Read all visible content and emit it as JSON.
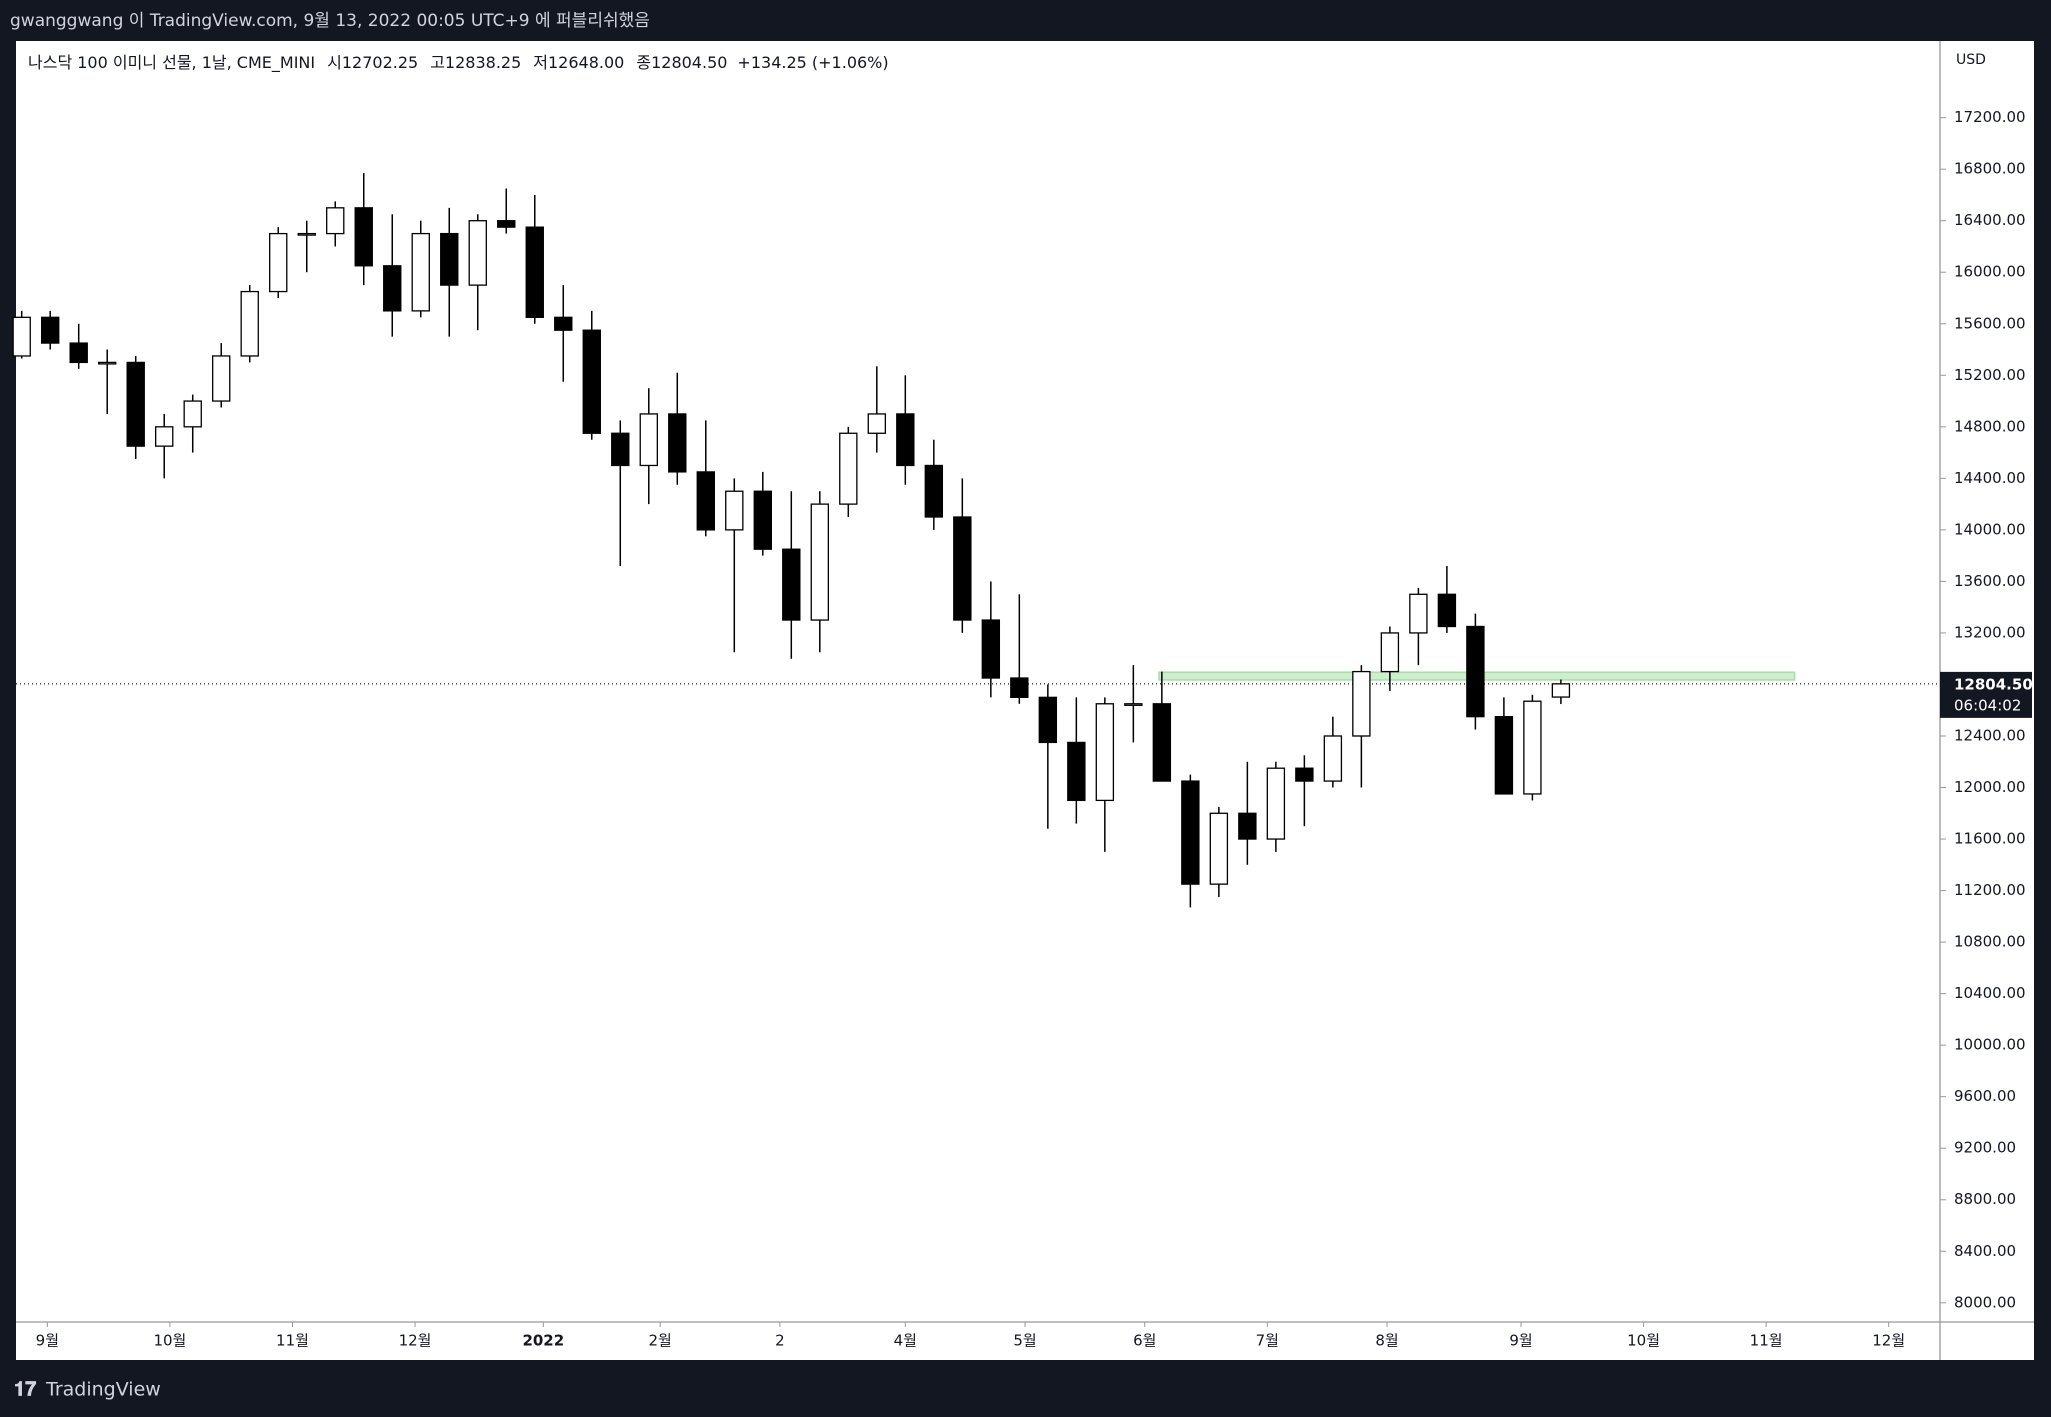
{
  "header": {
    "title": "gwanggwang 이 TradingView.com, 9월 13, 2022 00:05 UTC+9 에 퍼블리쉬했음"
  },
  "chart_data": {
    "type": "candlestick",
    "legend": {
      "symbol": "나스닥 100 이미니 선물, 1날, CME_MINI",
      "open_label": "시",
      "open": "12702.25",
      "high_label": "고",
      "high": "12838.25",
      "low_label": "저",
      "low": "12648.00",
      "close_label": "종",
      "close": "12804.50",
      "change": "+134.25 (+1.06%)"
    },
    "currency": "USD",
    "categories": [
      null,
      null,
      null,
      null,
      null,
      null,
      null,
      null,
      null,
      null,
      null,
      null,
      null,
      null,
      null,
      null,
      null,
      null,
      null,
      null,
      null,
      null,
      null,
      null,
      null,
      null,
      null,
      null,
      null,
      null,
      null,
      null,
      null,
      null,
      null,
      null,
      null,
      null,
      null,
      null,
      null,
      null,
      null,
      null,
      null,
      null,
      null,
      null,
      null,
      null,
      null,
      null,
      null,
      null,
      null
    ],
    "open": [
      15350,
      15650,
      15450,
      15300,
      15300,
      14650,
      14800,
      15000,
      15350,
      15850,
      16300,
      16300,
      16500,
      16050,
      15700,
      16300,
      15900,
      16400,
      16350,
      15650,
      15550,
      14750,
      14500,
      14900,
      14450,
      14000,
      14300,
      13850,
      13300,
      14200,
      14750,
      14900,
      14500,
      14100,
      13300,
      12850,
      12700,
      12350,
      11900,
      12650,
      12650,
      12050,
      11250,
      11800,
      11600,
      12150,
      12050,
      12400,
      12900,
      13200,
      13500,
      13250,
      12550,
      11950,
      12702.25
    ],
    "high": [
      15700,
      15700,
      15600,
      15400,
      15350,
      14900,
      15050,
      15450,
      15900,
      16350,
      16400,
      16550,
      16770,
      16450,
      16400,
      16500,
      16450,
      16650,
      16600,
      15900,
      15700,
      14850,
      15100,
      15220,
      14850,
      14400,
      14450,
      14300,
      14300,
      14800,
      15270,
      15200,
      14700,
      14400,
      13600,
      13500,
      12800,
      12700,
      12700,
      12950,
      12900,
      12100,
      11850,
      12200,
      12200,
      12250,
      12550,
      12950,
      13250,
      13550,
      13720,
      13350,
      12700,
      12720,
      12838.25
    ],
    "low": [
      15330,
      15400,
      15250,
      14900,
      14550,
      14400,
      14600,
      14950,
      15300,
      15800,
      16000,
      16200,
      15900,
      15500,
      15650,
      15500,
      15550,
      16300,
      15600,
      15150,
      14700,
      13720,
      14200,
      14350,
      13950,
      13050,
      13800,
      13000,
      13050,
      14100,
      14600,
      14350,
      14000,
      13200,
      12700,
      12650,
      11680,
      11720,
      11500,
      12350,
      12050,
      11070,
      11150,
      11400,
      11500,
      11700,
      12000,
      12000,
      12750,
      12950,
      13200,
      12450,
      11950,
      11900,
      12648
    ],
    "close": [
      15650,
      15450,
      15300,
      15300,
      14650,
      14800,
      15000,
      15350,
      15850,
      16300,
      16300,
      16500,
      16050,
      15700,
      16300,
      15900,
      16400,
      16350,
      15650,
      15550,
      14750,
      14500,
      14900,
      14450,
      14000,
      14300,
      13850,
      13300,
      14200,
      14750,
      14900,
      14500,
      14100,
      13300,
      12850,
      12700,
      12350,
      11900,
      12650,
      12650,
      12050,
      11250,
      11800,
      11600,
      12150,
      12050,
      12400,
      12900,
      13200,
      13500,
      13250,
      12550,
      11950,
      12670,
      12804.5
    ],
    "up_color": "#ffffff",
    "down_color": "#000000",
    "outline_color": "#000000",
    "xlim": [
      -0.2,
      67.3
    ],
    "xticks": [
      {
        "value": 0.9,
        "label": "9월"
      },
      {
        "value": 5.2,
        "label": "10월"
      },
      {
        "value": 9.5,
        "label": "11월"
      },
      {
        "value": 13.8,
        "label": "12월"
      },
      {
        "value": 18.3,
        "label": "2022"
      },
      {
        "value": 22.4,
        "label": "2월"
      },
      {
        "value": 26.6,
        "label": "2"
      },
      {
        "value": 31.0,
        "label": "4월"
      },
      {
        "value": 35.2,
        "label": "5월"
      },
      {
        "value": 39.4,
        "label": "6월"
      },
      {
        "value": 43.7,
        "label": "7월"
      },
      {
        "value": 47.9,
        "label": "8월"
      },
      {
        "value": 52.6,
        "label": "9월"
      },
      {
        "value": 56.9,
        "label": "10월"
      },
      {
        "value": 61.2,
        "label": "11월"
      },
      {
        "value": 65.5,
        "label": "12월"
      }
    ],
    "ylim": [
      7851,
      17795
    ],
    "yticks": [
      {
        "value": 8000,
        "label": "8000.00"
      },
      {
        "value": 8400,
        "label": "8400.00"
      },
      {
        "value": 8800,
        "label": "8800.00"
      },
      {
        "value": 9200,
        "label": "9200.00"
      },
      {
        "value": 9600,
        "label": "9600.00"
      },
      {
        "value": 10000,
        "label": "10000.00"
      },
      {
        "value": 10400,
        "label": "10400.00"
      },
      {
        "value": 10800,
        "label": "10800.00"
      },
      {
        "value": 11200,
        "label": "11200.00"
      },
      {
        "value": 11600,
        "label": "11600.00"
      },
      {
        "value": 12000,
        "label": "12000.00"
      },
      {
        "value": 12400,
        "label": "12400.00"
      },
      {
        "value": 12800,
        "label": "12800.00"
      },
      {
        "value": 13200,
        "label": "13200.00"
      },
      {
        "value": 13600,
        "label": "13600.00"
      },
      {
        "value": 14000,
        "label": "14000.00"
      },
      {
        "value": 14400,
        "label": "14400.00"
      },
      {
        "value": 14800,
        "label": "14800.00"
      },
      {
        "value": 15200,
        "label": "15200.00"
      },
      {
        "value": 15600,
        "label": "15600.00"
      },
      {
        "value": 16000,
        "label": "16000.00"
      },
      {
        "value": 16400,
        "label": "16400.00"
      },
      {
        "value": 16800,
        "label": "16800.00"
      },
      {
        "value": 17200,
        "label": "17200.00"
      }
    ],
    "last_price": {
      "value": 12804.5,
      "label": "12804.50"
    },
    "countdown": "06:04:02",
    "zone": {
      "x": [
        39.9,
        62.2
      ],
      "y": [
        12835,
        12895
      ],
      "color": "#a5e0a5"
    }
  },
  "footer": {
    "brand": "TradingView"
  }
}
